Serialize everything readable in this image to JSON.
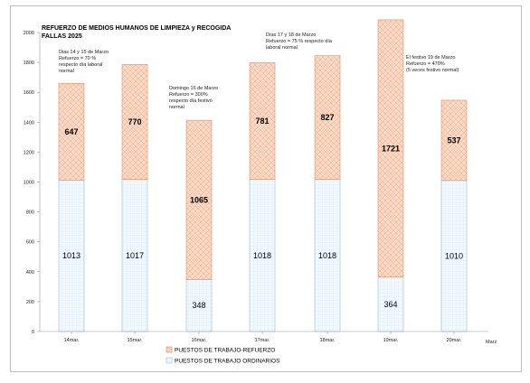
{
  "chart_data": {
    "type": "bar",
    "stacked": true,
    "title": [
      "REFUERZO DE MEDIOS HUMANOS DE LIMPIEZA y RECOGIDA",
      "FALLAS 2025"
    ],
    "categories": [
      "14mar.",
      "15mar.",
      "16mar.",
      "17mar.",
      "18mar.",
      "19mar.",
      "20mar."
    ],
    "extra_tick": "Marz",
    "ylim": [
      0,
      2000
    ],
    "yticks": [
      0,
      200,
      400,
      600,
      800,
      1000,
      1200,
      1400,
      1600,
      1800,
      2000
    ],
    "grid": false,
    "legend_position": "bottom",
    "series": [
      {
        "name": "PUESTOS DE TRABAJO  ORDINARIOS",
        "values": [
          1013,
          1017,
          348,
          1018,
          1018,
          364,
          1010
        ],
        "labels": [
          "1013",
          "1017",
          "348",
          "1018",
          "1018",
          "364",
          "1010"
        ]
      },
      {
        "name": "PUESTOS DE TRABAJO-REFUERZO",
        "values": [
          647,
          770,
          1065,
          781,
          827,
          1721,
          537
        ],
        "labels": [
          "647",
          "770",
          "1065",
          "781",
          "827",
          "1721",
          "537"
        ]
      }
    ],
    "annotations": [
      {
        "category": 0,
        "y": 1860,
        "lines": [
          "Dias 14 y 15 de Marzo",
          "Refuerzo = 70 %",
          "respecto día laboral",
          "normal"
        ]
      },
      {
        "category": 2,
        "y": 1620,
        "lines": [
          "Domingo 16 de Marzo",
          "Refuerzo = 300%",
          "respecto día festivo",
          "normal"
        ]
      },
      {
        "category": 3,
        "y": 1975,
        "lines": [
          "Días 17 y 18 de Marzo",
          "Refuerzo = 75 % respecto día",
          "laboral normal"
        ]
      },
      {
        "category": 6,
        "y": 1825,
        "lines": [
          "El festivo 19 de Marzo",
          "Refuerzo = 470%",
          "(5 veces festivo normal)"
        ]
      }
    ]
  },
  "colors": {
    "refuerzo_fill": "#fbd9c4",
    "refuerzo_stroke": "#e48a61",
    "ordinarios_fill": "#f2f8fd",
    "ordinarios_stroke": "#8fbde8",
    "axis": "#9a9a9a"
  }
}
